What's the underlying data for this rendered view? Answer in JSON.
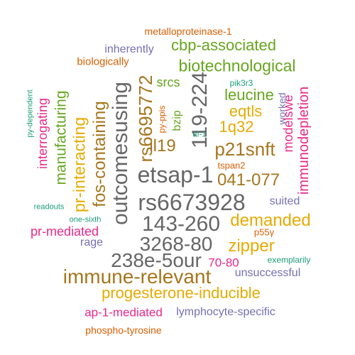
{
  "palette": {
    "orange": "#d95f02",
    "purple": "#7570b3",
    "magenta": "#e7298a",
    "green": "#66a61e",
    "gold": "#e6ab02",
    "brown": "#a6761d",
    "gray": "#666666",
    "teal": "#1b9e77"
  },
  "words": [
    {
      "text": "metalloproteinase-1",
      "color": "orange",
      "rotated": false
    },
    {
      "text": "inherently",
      "color": "purple",
      "rotated": false
    },
    {
      "text": "cbp-associated",
      "color": "green",
      "rotated": false
    },
    {
      "text": "biologically",
      "color": "orange",
      "rotated": false
    },
    {
      "text": "biotechnological",
      "color": "green",
      "rotated": false
    },
    {
      "text": "rs6695772",
      "color": "brown",
      "rotated": true
    },
    {
      "text": "outcomesusing",
      "color": "gray",
      "rotated": true
    },
    {
      "text": "119-224",
      "color": "gray",
      "rotated": true
    },
    {
      "text": "srcs",
      "color": "green",
      "rotated": false
    },
    {
      "text": "pik3r3",
      "color": "teal",
      "rotated": false
    },
    {
      "text": "leucine",
      "color": "green",
      "rotated": false
    },
    {
      "text": "immunodepletion",
      "color": "magenta",
      "rotated": true
    },
    {
      "text": "py-dependent",
      "color": "teal",
      "rotated": true
    },
    {
      "text": "interrogating",
      "color": "magenta",
      "rotated": true
    },
    {
      "text": "manufacturing",
      "color": "green",
      "rotated": true
    },
    {
      "text": "pr-interacting",
      "color": "gold",
      "rotated": true
    },
    {
      "text": "fos-containing",
      "color": "brown",
      "rotated": true
    },
    {
      "text": "py-ppis",
      "color": "orange",
      "rotated": true
    },
    {
      "text": "bzip",
      "color": "green",
      "rotated": true
    },
    {
      "text": "il19",
      "color": "brown",
      "rotated": false
    },
    {
      "text": "eqtls",
      "color": "gold",
      "rotated": false
    },
    {
      "text": "worked",
      "color": "purple",
      "rotated": true
    },
    {
      "text": "modelswe",
      "color": "magenta",
      "rotated": true
    },
    {
      "text": "1q32",
      "color": "gold",
      "rotated": false
    },
    {
      "text": "af-1",
      "color": "teal",
      "rotated": false
    },
    {
      "text": "p21snft",
      "color": "brown",
      "rotated": false
    },
    {
      "text": "tspan2",
      "color": "orange",
      "rotated": false
    },
    {
      "text": "etsap-1",
      "color": "gray",
      "rotated": false
    },
    {
      "text": "041-077",
      "color": "brown",
      "rotated": false
    },
    {
      "text": "rs6673928",
      "color": "gray",
      "rotated": false
    },
    {
      "text": "suited",
      "color": "purple",
      "rotated": false
    },
    {
      "text": "readouts",
      "color": "teal",
      "rotated": false
    },
    {
      "text": "demanded",
      "color": "gold",
      "rotated": false
    },
    {
      "text": "one-sixth",
      "color": "teal",
      "rotated": false
    },
    {
      "text": "143-260",
      "color": "gray",
      "rotated": false
    },
    {
      "text": "pr-mediated",
      "color": "magenta",
      "rotated": false
    },
    {
      "text": "p55γ",
      "color": "orange",
      "rotated": false
    },
    {
      "text": "rage",
      "color": "purple",
      "rotated": false
    },
    {
      "text": "3268-80",
      "color": "gray",
      "rotated": false
    },
    {
      "text": "zipper",
      "color": "gold",
      "rotated": false
    },
    {
      "text": "exemplarily",
      "color": "teal",
      "rotated": false
    },
    {
      "text": "238e-5our",
      "color": "gray",
      "rotated": false
    },
    {
      "text": "70-80",
      "color": "magenta",
      "rotated": false
    },
    {
      "text": "unsuccessful",
      "color": "purple",
      "rotated": false
    },
    {
      "text": "immune-relevant",
      "color": "brown",
      "rotated": false
    },
    {
      "text": "progesterone-inducible",
      "color": "gold",
      "rotated": false
    },
    {
      "text": "ap-1-mediated",
      "color": "magenta",
      "rotated": false
    },
    {
      "text": "lymphocyte-specific",
      "color": "purple",
      "rotated": false
    },
    {
      "text": "phospho-tyrosine",
      "color": "orange",
      "rotated": false
    }
  ]
}
